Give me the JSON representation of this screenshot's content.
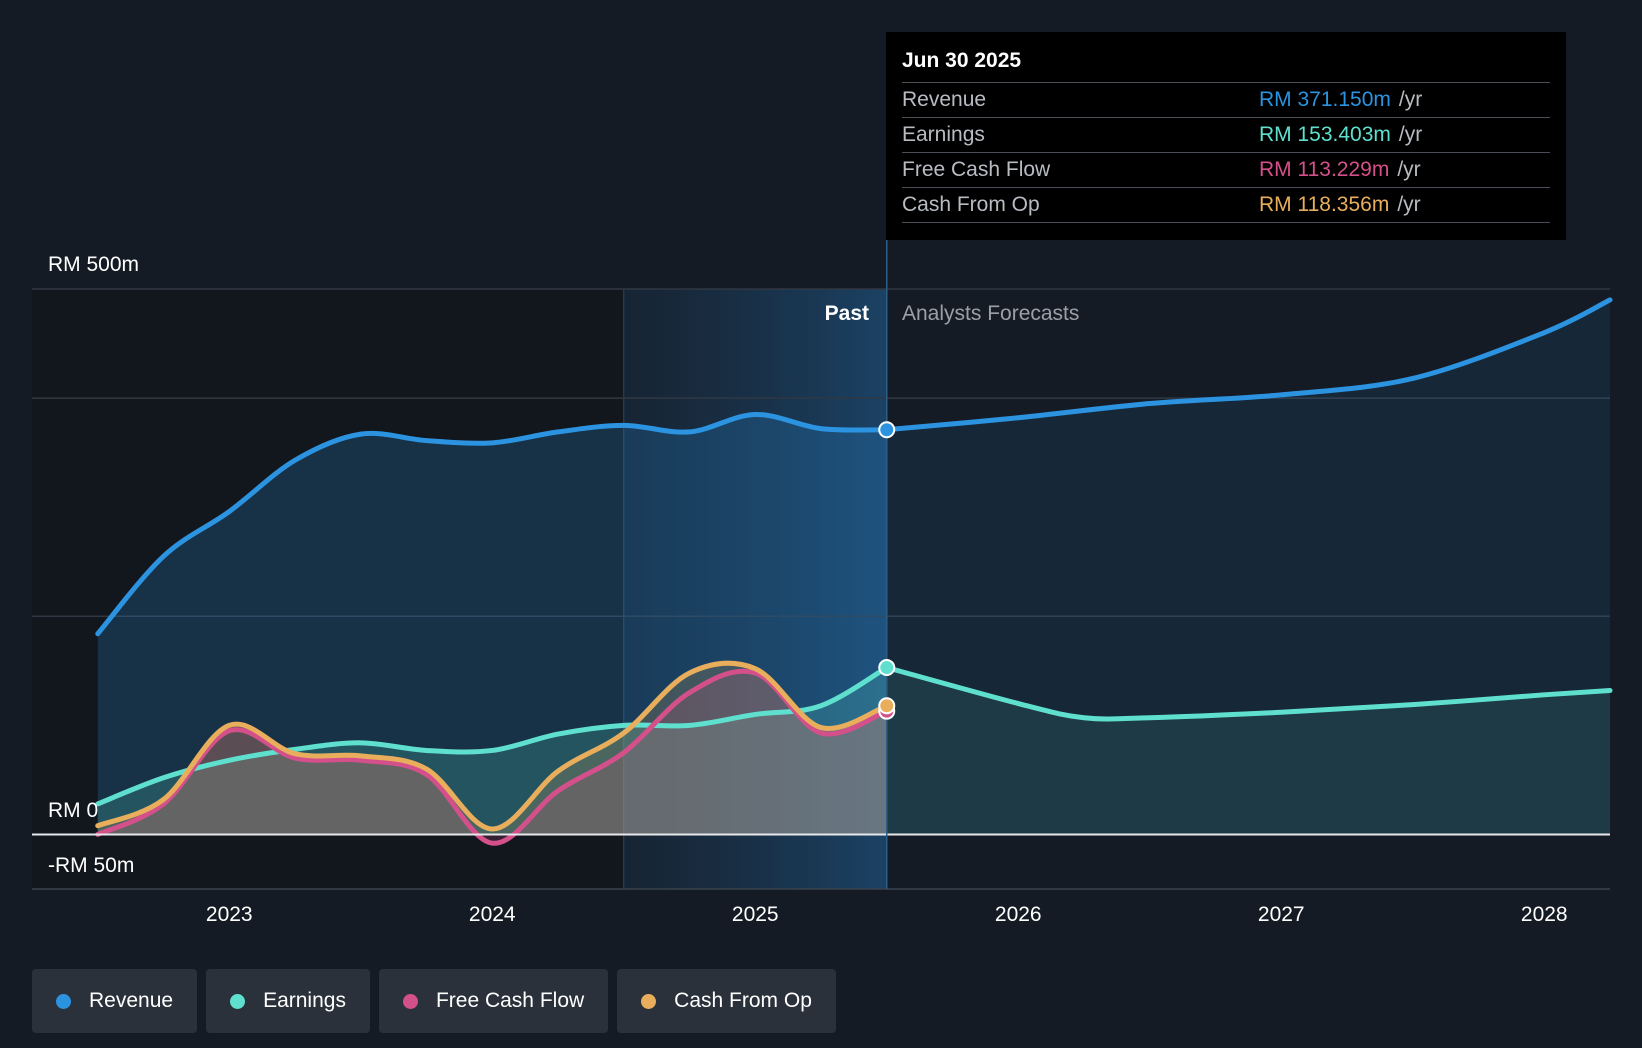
{
  "chart_data": {
    "type": "area",
    "currency_unit": "RM m",
    "y_tick_labels": [
      "RM 500m",
      "RM 0",
      "-RM 50m"
    ],
    "ylim": [
      -50,
      500
    ],
    "x_tick_labels": [
      "2023",
      "2024",
      "2025",
      "2026",
      "2027",
      "2028"
    ],
    "x_ticks": [
      2023.0,
      2024.0,
      2025.0,
      2026.0,
      2027.0,
      2028.0
    ],
    "xlim": [
      2022.25,
      2028.25
    ],
    "divider_x": 2025.5,
    "highlight_start_x": 2024.5,
    "past_label": "Past",
    "forecast_label": "Analysts Forecasts",
    "series": [
      {
        "name": "Revenue",
        "color": "#2b93e0",
        "past": [
          [
            2022.5,
            184
          ],
          [
            2022.75,
            255
          ],
          [
            2023.0,
            296
          ],
          [
            2023.25,
            343
          ],
          [
            2023.5,
            367
          ],
          [
            2023.75,
            361
          ],
          [
            2024.0,
            359
          ],
          [
            2024.25,
            369
          ],
          [
            2024.5,
            375
          ],
          [
            2024.75,
            369
          ],
          [
            2025.0,
            385
          ],
          [
            2025.25,
            372
          ],
          [
            2025.5,
            371
          ]
        ],
        "forecast": [
          [
            2025.5,
            371
          ],
          [
            2026.0,
            382
          ],
          [
            2026.5,
            395
          ],
          [
            2027.0,
            403
          ],
          [
            2027.5,
            418
          ],
          [
            2028.0,
            460
          ],
          [
            2028.25,
            490
          ]
        ]
      },
      {
        "name": "Earnings",
        "color": "#5fe0cf",
        "past": [
          [
            2022.5,
            28
          ],
          [
            2022.75,
            52
          ],
          [
            2023.0,
            68
          ],
          [
            2023.25,
            78
          ],
          [
            2023.5,
            84
          ],
          [
            2023.75,
            77
          ],
          [
            2024.0,
            77
          ],
          [
            2024.25,
            92
          ],
          [
            2024.5,
            100
          ],
          [
            2024.75,
            100
          ],
          [
            2025.0,
            110
          ],
          [
            2025.25,
            118
          ],
          [
            2025.5,
            153
          ]
        ],
        "forecast": [
          [
            2025.5,
            153
          ],
          [
            2026.0,
            120
          ],
          [
            2026.25,
            107
          ],
          [
            2026.5,
            107
          ],
          [
            2027.0,
            112
          ],
          [
            2027.5,
            119
          ],
          [
            2028.0,
            128
          ],
          [
            2028.25,
            132
          ]
        ]
      },
      {
        "name": "Free Cash Flow",
        "color": "#d4508a",
        "past": [
          [
            2022.5,
            0
          ],
          [
            2022.75,
            28
          ],
          [
            2023.0,
            95
          ],
          [
            2023.25,
            70
          ],
          [
            2023.5,
            68
          ],
          [
            2023.75,
            55
          ],
          [
            2024.0,
            -8
          ],
          [
            2024.25,
            40
          ],
          [
            2024.5,
            75
          ],
          [
            2024.75,
            130
          ],
          [
            2025.0,
            148
          ],
          [
            2025.25,
            93
          ],
          [
            2025.5,
            113
          ]
        ],
        "forecast": []
      },
      {
        "name": "Cash From Op",
        "color": "#e8ae5c",
        "past": [
          [
            2022.5,
            8
          ],
          [
            2022.75,
            32
          ],
          [
            2023.0,
            100
          ],
          [
            2023.25,
            74
          ],
          [
            2023.5,
            72
          ],
          [
            2023.75,
            60
          ],
          [
            2024.0,
            5
          ],
          [
            2024.25,
            58
          ],
          [
            2024.5,
            93
          ],
          [
            2024.75,
            148
          ],
          [
            2025.0,
            152
          ],
          [
            2025.25,
            98
          ],
          [
            2025.5,
            118
          ]
        ],
        "forecast": []
      }
    ]
  },
  "tooltip": {
    "date": "Jun 30 2025",
    "unit": "/yr",
    "rows": [
      {
        "label": "Revenue",
        "value": "RM 371.150m",
        "color": "#2b93e0"
      },
      {
        "label": "Earnings",
        "value": "RM 153.403m",
        "color": "#5fe0cf"
      },
      {
        "label": "Free Cash Flow",
        "value": "RM 113.229m",
        "color": "#d4508a"
      },
      {
        "label": "Cash From Op",
        "value": "RM 118.356m",
        "color": "#e8ae5c"
      }
    ]
  },
  "legend": [
    {
      "label": "Revenue",
      "color": "#2b93e0"
    },
    {
      "label": "Earnings",
      "color": "#5fe0cf"
    },
    {
      "label": "Free Cash Flow",
      "color": "#d4508a"
    },
    {
      "label": "Cash From Op",
      "color": "#e8ae5c"
    }
  ]
}
